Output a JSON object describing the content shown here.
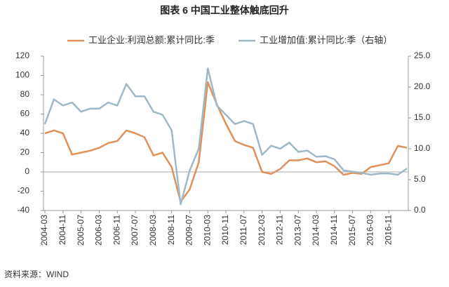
{
  "chart_data": {
    "type": "line",
    "title": "图表 6  中国工业整体触底回升",
    "source": "资料来源：WIND",
    "x": [
      "2004-03",
      "2004-07",
      "2004-11",
      "2005-03",
      "2005-07",
      "2005-11",
      "2006-03",
      "2006-07",
      "2006-11",
      "2007-03",
      "2007-07",
      "2007-11",
      "2008-03",
      "2008-07",
      "2008-11",
      "2009-03",
      "2009-07",
      "2009-11",
      "2010-03",
      "2010-07",
      "2010-11",
      "2011-03",
      "2011-07",
      "2011-11",
      "2012-03",
      "2012-07",
      "2012-11",
      "2013-03",
      "2013-07",
      "2013-11",
      "2014-03",
      "2014-07",
      "2014-11",
      "2015-03",
      "2015-07",
      "2015-11",
      "2016-03",
      "2016-07",
      "2016-11",
      "2017-03",
      "2017-07"
    ],
    "xticks": [
      "2004-03",
      "2004-11",
      "2005-07",
      "2006-03",
      "2006-11",
      "2007-07",
      "2008-03",
      "2008-11",
      "2009-07",
      "2010-03",
      "2010-11",
      "2011-07",
      "2012-03",
      "2012-11",
      "2013-07",
      "2014-03",
      "2014-11",
      "2015-07",
      "2016-03",
      "2016-11"
    ],
    "series": [
      {
        "name": "工业企业:利润总额:累计同比:季",
        "color": "#e0915a",
        "values": [
          40,
          43,
          40,
          18,
          20,
          22,
          25,
          30,
          32,
          43,
          40,
          36,
          17,
          20,
          5,
          -31,
          -18,
          10,
          93,
          70,
          50,
          32,
          28,
          25,
          0,
          -2,
          3,
          12,
          12,
          14,
          10,
          11,
          6,
          -3,
          -1,
          -2,
          5,
          7,
          9,
          27,
          25
        ]
      },
      {
        "name": "工业增加值:累计同比:季（右轴）",
        "color": "#9fb8c6",
        "axis": "y2",
        "values": [
          14,
          18,
          17,
          17.5,
          16,
          16.5,
          16.5,
          17.5,
          17,
          20.5,
          18.5,
          18.5,
          16,
          15.5,
          13,
          1,
          6.5,
          10,
          23,
          17,
          15.5,
          14,
          14.5,
          14,
          9,
          10.5,
          10,
          11,
          9.5,
          9.7,
          8.7,
          8.8,
          8.3,
          6.5,
          6.3,
          6.1,
          5.8,
          6,
          6,
          5.8,
          6.8
        ]
      }
    ],
    "ylim": [
      -40,
      120
    ],
    "yticks": [
      -40,
      -20,
      0,
      20,
      40,
      60,
      80,
      100,
      120
    ],
    "y2lim": [
      0,
      25
    ],
    "y2ticks": [
      {
        "value": 0,
        "label": "0.0"
      },
      {
        "value": 5,
        "label": "5.0"
      },
      {
        "value": 10,
        "label": "10.0"
      },
      {
        "value": 15,
        "label": "15.0"
      },
      {
        "value": 20,
        "label": "20.0"
      },
      {
        "value": 25,
        "label": "25.0"
      }
    ],
    "grid": false
  }
}
